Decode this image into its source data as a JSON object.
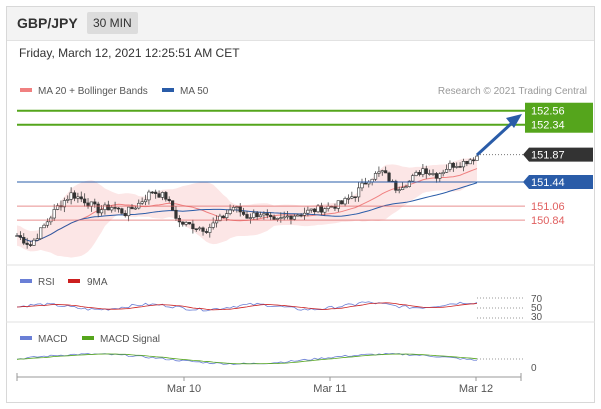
{
  "header": {
    "pair": "GBP/JPY",
    "interval": "30 MIN",
    "datetime": "Friday, March 12, 2021 12:25:51 AM CET"
  },
  "legend": {
    "ma20_label": "MA 20 + Bollinger Bands",
    "ma50_label": "MA 50",
    "copyright": "Research © 2021 Trading Central",
    "rsi_label": "RSI",
    "nine_ma_label": "9MA",
    "macd_label": "MACD",
    "macd_signal_label": "MACD Signal"
  },
  "colors": {
    "bollinger": "#f08080",
    "ma50": "#2a5ca8",
    "target": "#55a51c",
    "current": "#333333",
    "resistance_support": "#e06060",
    "rsi": "#6a7fd6",
    "nine_ma": "#cc1f1f",
    "macd": "#6a7fd6",
    "macd_signal": "#55a51c"
  },
  "chart_data": [
    {
      "type": "candlestick",
      "title": "GBP/JPY",
      "x_ticks": [
        "Mar 10",
        "Mar 11",
        "Mar 12"
      ],
      "levels": [
        {
          "name": "target-high",
          "value": 152.56,
          "label": "152.56",
          "color": "#55a51c"
        },
        {
          "name": "target-low",
          "value": 152.34,
          "label": "152.34",
          "color": "#55a51c"
        },
        {
          "name": "current",
          "value": 151.87,
          "label": "151.87",
          "color": "#333333"
        },
        {
          "name": "pivot",
          "value": 151.44,
          "label": "151.44",
          "color": "#2a5ca8"
        },
        {
          "name": "support-1",
          "value": 151.06,
          "label": "151.06",
          "color": "#e06060"
        },
        {
          "name": "support-2",
          "value": 150.84,
          "label": "150.84",
          "color": "#e06060"
        }
      ],
      "close_path": [
        [
          0,
          150.6
        ],
        [
          4,
          150.45
        ],
        [
          8,
          150.75
        ],
        [
          12,
          151.05
        ],
        [
          16,
          151.25
        ],
        [
          20,
          151.15
        ],
        [
          24,
          151.0
        ],
        [
          28,
          151.05
        ],
        [
          32,
          150.95
        ],
        [
          36,
          151.1
        ],
        [
          40,
          151.3
        ],
        [
          44,
          151.2
        ],
        [
          48,
          150.8
        ],
        [
          52,
          150.75
        ],
        [
          56,
          150.7
        ],
        [
          60,
          150.85
        ],
        [
          64,
          151.05
        ],
        [
          68,
          150.9
        ],
        [
          72,
          150.95
        ],
        [
          76,
          150.8
        ],
        [
          80,
          150.9
        ],
        [
          84,
          150.95
        ],
        [
          88,
          151.0
        ],
        [
          92,
          151.05
        ],
        [
          96,
          151.1
        ],
        [
          100,
          151.25
        ],
        [
          104,
          151.5
        ],
        [
          108,
          151.6
        ],
        [
          112,
          151.35
        ],
        [
          116,
          151.45
        ],
        [
          120,
          151.65
        ],
        [
          124,
          151.55
        ],
        [
          128,
          151.7
        ],
        [
          132,
          151.75
        ],
        [
          136,
          151.85
        ]
      ]
    },
    {
      "type": "line",
      "title": "RSI",
      "y_ticks": [
        70,
        50,
        30
      ],
      "series": [
        {
          "name": "RSI"
        },
        {
          "name": "9MA"
        }
      ]
    },
    {
      "type": "line",
      "title": "MACD",
      "y_ticks": [
        0
      ],
      "series": [
        {
          "name": "MACD"
        },
        {
          "name": "MACD Signal"
        }
      ]
    }
  ]
}
